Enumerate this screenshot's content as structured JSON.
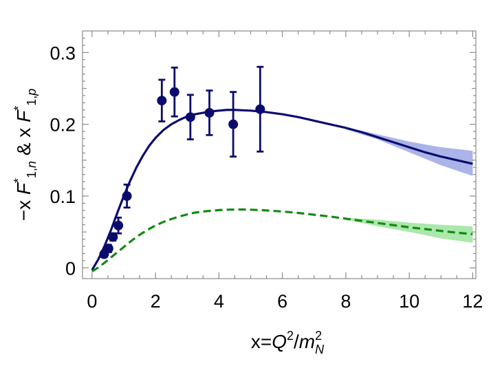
{
  "chart_data": {
    "type": "line",
    "xlabel": "x=Q²/m_N²",
    "ylabel": "-x F*_{1,n} & x F*_{1,p}",
    "xlim": [
      -0.3,
      12.1
    ],
    "ylim": [
      -0.015,
      0.33
    ],
    "xticks": [
      0,
      2,
      4,
      6,
      8,
      10,
      12
    ],
    "yticks": [
      0,
      0.1,
      0.2,
      0.3
    ],
    "xtick_labels": [
      "0",
      "2",
      "4",
      "6",
      "8",
      "10",
      "12"
    ],
    "ytick_labels": [
      "0",
      "0.1",
      "0.2",
      "0.3"
    ],
    "grid": false,
    "legend": "none",
    "colors": {
      "proton_line": "#0b0b6e",
      "proton_band": "#8e9be0",
      "neutron_line": "#138a13",
      "neutron_band": "#8fe08f",
      "points": "#0b0b6e"
    },
    "series": [
      {
        "style": "solid",
        "color": "#0b0b6e",
        "x": [
          0,
          0.2,
          0.4,
          0.6,
          0.8,
          1.0,
          1.2,
          1.4,
          1.6,
          1.8,
          2.0,
          2.25,
          2.5,
          2.75,
          3.0,
          3.25,
          3.5,
          3.75,
          4.0,
          4.25,
          4.5,
          4.75,
          5.0,
          5.5,
          6.0,
          6.5,
          7.0,
          7.5,
          8.0,
          8.5,
          9.0,
          9.5,
          10.0,
          10.5,
          11.0,
          11.5,
          12.0
        ],
        "y": [
          -0.003,
          0.012,
          0.031,
          0.053,
          0.077,
          0.1,
          0.121,
          0.14,
          0.156,
          0.17,
          0.181,
          0.192,
          0.2,
          0.206,
          0.211,
          0.214,
          0.216,
          0.218,
          0.219,
          0.22,
          0.22,
          0.2195,
          0.219,
          0.217,
          0.214,
          0.21,
          0.205,
          0.2,
          0.195,
          0.189,
          0.182,
          0.175,
          0.168,
          0.161,
          0.155,
          0.15,
          0.145
        ],
        "band": {
          "x": [
            8.0,
            9.0,
            10.0,
            11.0,
            12.0
          ],
          "upper": [
            0.196,
            0.186,
            0.176,
            0.168,
            0.163
          ],
          "lower": [
            0.193,
            0.179,
            0.161,
            0.143,
            0.128
          ]
        }
      },
      {
        "style": "dashed",
        "color": "#138a13",
        "x": [
          0,
          0.25,
          0.5,
          0.75,
          1.0,
          1.25,
          1.5,
          1.75,
          2.0,
          2.25,
          2.5,
          2.75,
          3.0,
          3.25,
          3.5,
          3.75,
          4.0,
          4.25,
          4.5,
          4.75,
          5.0,
          5.5,
          6.0,
          6.5,
          7.0,
          7.5,
          8.0,
          8.5,
          9.0,
          9.5,
          10.0,
          10.5,
          11.0,
          11.5,
          12.0
        ],
        "y": [
          -0.005,
          0.002,
          0.011,
          0.02,
          0.029,
          0.038,
          0.046,
          0.053,
          0.059,
          0.064,
          0.068,
          0.0715,
          0.0745,
          0.077,
          0.0785,
          0.0795,
          0.0805,
          0.081,
          0.0812,
          0.0813,
          0.081,
          0.08,
          0.0785,
          0.0765,
          0.074,
          0.0715,
          0.0685,
          0.0655,
          0.0625,
          0.0595,
          0.0565,
          0.054,
          0.0515,
          0.049,
          0.047
        ],
        "band": {
          "x": [
            8.0,
            9.0,
            10.0,
            11.0,
            12.0
          ],
          "upper": [
            0.07,
            0.067,
            0.063,
            0.06,
            0.058
          ],
          "lower": [
            0.067,
            0.058,
            0.05,
            0.041,
            0.035
          ]
        }
      },
      {
        "style": "points",
        "color": "#0b0b6e",
        "x": [
          0.38,
          0.52,
          0.66,
          0.83,
          1.1,
          2.2,
          2.6,
          3.1,
          3.7,
          4.45,
          5.3
        ],
        "y": [
          0.019,
          0.027,
          0.043,
          0.059,
          0.1,
          0.233,
          0.245,
          0.21,
          0.216,
          0.2,
          0.221
        ],
        "yerr": [
          0.004,
          0.005,
          0.005,
          0.011,
          0.016,
          0.029,
          0.034,
          0.031,
          0.031,
          0.045,
          0.059
        ]
      }
    ]
  }
}
